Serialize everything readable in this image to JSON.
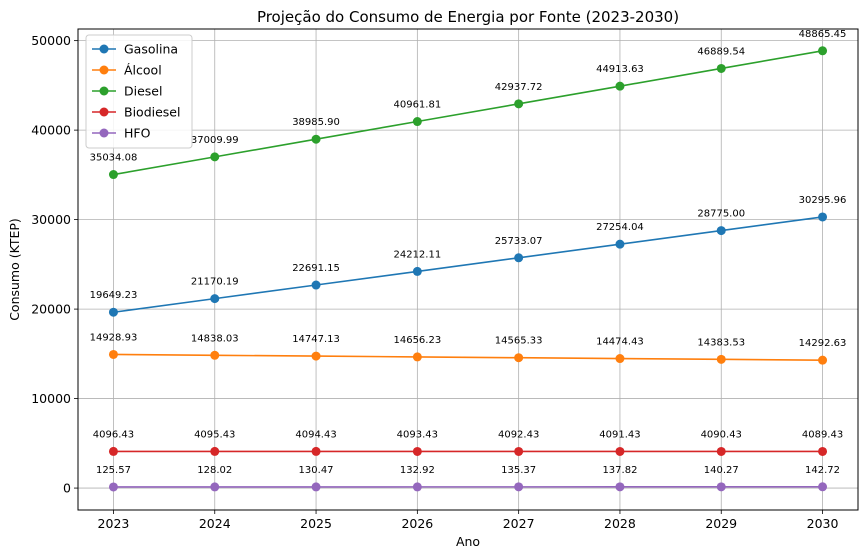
{
  "chart_data": {
    "type": "line",
    "title": "Projeção do Consumo de Energia por Fonte (2023-2030)",
    "xlabel": "Ano",
    "ylabel": "Consumo (KTEP)",
    "x": [
      2023,
      2024,
      2025,
      2026,
      2027,
      2028,
      2029,
      2030
    ],
    "xticks": [
      "2023",
      "2024",
      "2025",
      "2026",
      "2027",
      "2028",
      "2029",
      "2030"
    ],
    "yticks": [
      "0",
      "10000",
      "20000",
      "30000",
      "40000",
      "50000"
    ],
    "ylim": [
      -2450,
      51300
    ],
    "xlim": [
      2022.65,
      2030.35
    ],
    "grid": true,
    "legend_position": "top-left",
    "series": [
      {
        "name": "Gasolina",
        "color": "#1f77b4",
        "values": [
          19649.23,
          21170.19,
          22691.15,
          24212.11,
          25733.07,
          27254.04,
          28775.0,
          30295.96
        ],
        "labels": [
          "19649.23",
          "21170.19",
          "22691.15",
          "24212.11",
          "25733.07",
          "27254.04",
          "28775.00",
          "30295.96"
        ]
      },
      {
        "name": "Álcool",
        "color": "#ff7f0e",
        "values": [
          14928.93,
          14838.03,
          14747.13,
          14656.23,
          14565.33,
          14474.43,
          14383.53,
          14292.63
        ],
        "labels": [
          "14928.93",
          "14838.03",
          "14747.13",
          "14656.23",
          "14565.33",
          "14474.43",
          "14383.53",
          "14292.63"
        ]
      },
      {
        "name": "Diesel",
        "color": "#2ca02c",
        "values": [
          35034.08,
          37009.99,
          38985.9,
          40961.81,
          42937.72,
          44913.63,
          46889.54,
          48865.45
        ],
        "labels": [
          "35034.08",
          "37009.99",
          "38985.90",
          "40961.81",
          "42937.72",
          "44913.63",
          "46889.54",
          "48865.45"
        ]
      },
      {
        "name": "Biodiesel",
        "color": "#d62728",
        "values": [
          4096.43,
          4095.43,
          4094.43,
          4093.43,
          4092.43,
          4091.43,
          4090.43,
          4089.43
        ],
        "labels": [
          "4096.43",
          "4095.43",
          "4094.43",
          "4093.43",
          "4092.43",
          "4091.43",
          "4090.43",
          "4089.43"
        ]
      },
      {
        "name": "HFO",
        "color": "#9467bd",
        "values": [
          125.57,
          128.02,
          130.47,
          132.92,
          135.37,
          137.82,
          140.27,
          142.72
        ],
        "labels": [
          "125.57",
          "128.02",
          "130.47",
          "132.92",
          "135.37",
          "137.82",
          "140.27",
          "142.72"
        ]
      }
    ]
  }
}
